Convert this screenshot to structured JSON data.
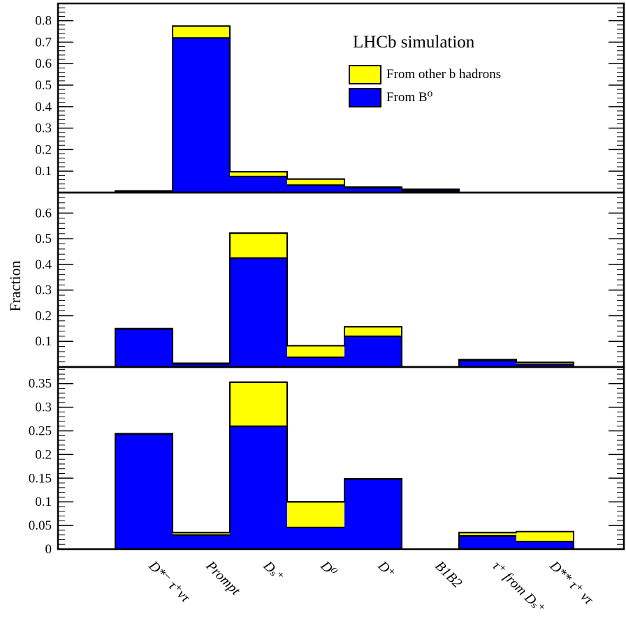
{
  "chart_data": {
    "type": "bar",
    "stacked": true,
    "title": "LHCb simulation",
    "ylabel": "Fraction",
    "categories": [
      "D*⁻ τ⁺ντ",
      "Prompt",
      "Dₛ⁺",
      "D⁰",
      "D⁺",
      "B1B2",
      "τ⁺ from Dₛ⁺",
      "D** τ⁺ ντ"
    ],
    "legend": [
      {
        "name": "From other b hadrons",
        "color": "#ffff00"
      },
      {
        "name": "From B⁰",
        "color": "#0000ff"
      }
    ],
    "colors": {
      "other": "#ffff00",
      "b0": "#0000ff",
      "frame": "#000000"
    },
    "grid": false,
    "legend_position": "top-right",
    "panels": [
      {
        "ylim": [
          0,
          0.88
        ],
        "yticks": [
          0.1,
          0.2,
          0.3,
          0.4,
          0.5,
          0.6,
          0.7,
          0.8
        ],
        "ytick_labels": [
          "0.1",
          "0.2",
          "0.3",
          "0.4",
          "0.5",
          "0.6",
          "0.7",
          "0.8"
        ],
        "minor_step": 0.02,
        "series": [
          {
            "name": "From B⁰",
            "values": [
              0.005,
              0.72,
              0.075,
              0.035,
              0.022,
              0.008,
              0,
              0
            ]
          },
          {
            "name": "From other b hadrons",
            "values": [
              0.003,
              0.055,
              0.022,
              0.028,
              0.003,
              0.007,
              0,
              0
            ]
          }
        ]
      },
      {
        "ylim": [
          0,
          0.68
        ],
        "yticks": [
          0.1,
          0.2,
          0.3,
          0.4,
          0.5,
          0.6
        ],
        "ytick_labels": [
          "0.1",
          "0.2",
          "0.3",
          "0.4",
          "0.5",
          "0.6"
        ],
        "minor_step": 0.02,
        "series": [
          {
            "name": "From B⁰",
            "values": [
              0.148,
              0.012,
              0.425,
              0.038,
              0.12,
              0,
              0.025,
              0.01
            ]
          },
          {
            "name": "From other b hadrons",
            "values": [
              0.002,
              0.003,
              0.097,
              0.045,
              0.037,
              0,
              0.004,
              0.008
            ]
          }
        ]
      },
      {
        "ylim": [
          0,
          0.385
        ],
        "yticks": [
          0,
          0.05,
          0.1,
          0.15,
          0.2,
          0.25,
          0.3,
          0.35
        ],
        "ytick_labels": [
          "0",
          "0.05",
          "0.1",
          "0.15",
          "0.2",
          "0.25",
          "0.3",
          "0.35"
        ],
        "minor_step": 0.01,
        "series": [
          {
            "name": "From B⁰",
            "values": [
              0.243,
              0.03,
              0.26,
              0.046,
              0.148,
              0,
              0.028,
              0.016
            ]
          },
          {
            "name": "From other b hadrons",
            "values": [
              0.001,
              0.005,
              0.093,
              0.054,
              0.001,
              0,
              0.007,
              0.021
            ]
          }
        ]
      }
    ]
  }
}
